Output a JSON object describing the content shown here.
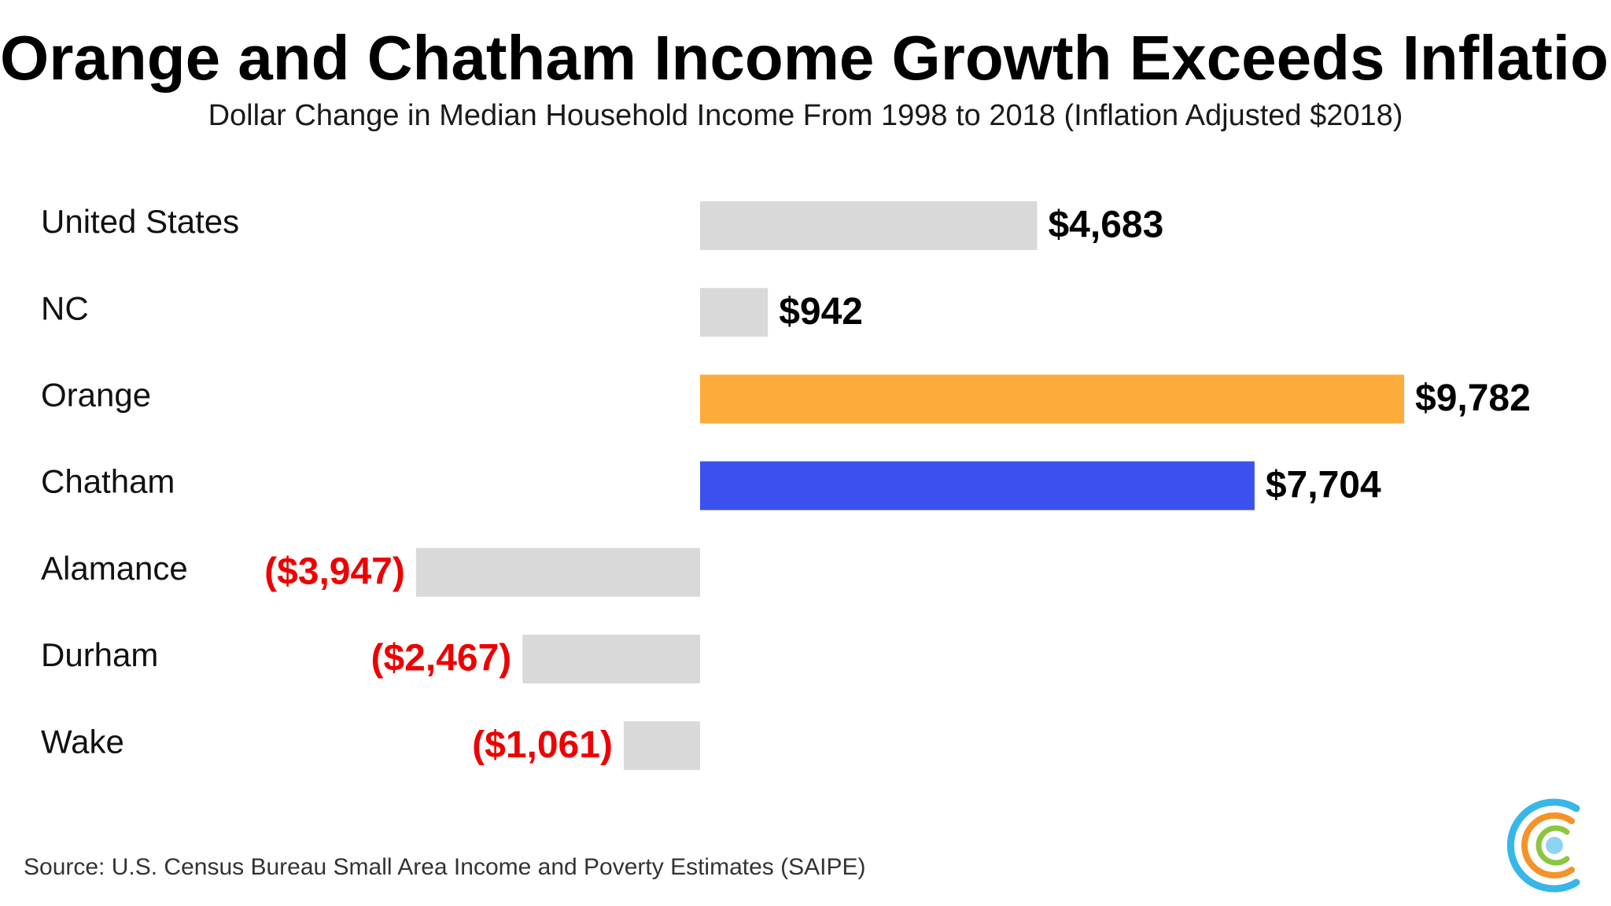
{
  "title": "Orange and Chatham Income Growth Exceeds Inflation",
  "subtitle": "Dollar Change in Median Household Income From 1998 to 2018 (Inflation Adjusted $2018)",
  "source": "Source: U.S. Census Bureau Small Area Income and Poverty Estimates (SAIPE)",
  "colors": {
    "default_bar": "#d9d9d9",
    "orange_bar": "#fdab3b",
    "chatham_bar": "#3c50ee",
    "positive_label": "#000000",
    "negative_label": "#ee0000"
  },
  "chart_data": {
    "type": "bar",
    "orientation": "horizontal",
    "categories": [
      "United States",
      "NC",
      "Orange",
      "Chatham",
      "Alamance",
      "Durham",
      "Wake"
    ],
    "values": [
      4683,
      942,
      9782,
      7704,
      -3947,
      -2467,
      -1061
    ],
    "value_labels": [
      "$4,683",
      "$942",
      "$9,782",
      "$7,704",
      "($3,947)",
      "($2,467)",
      "($1,061)"
    ],
    "bar_colors": [
      "#d9d9d9",
      "#d9d9d9",
      "#fdab3b",
      "#3c50ee",
      "#d9d9d9",
      "#d9d9d9",
      "#d9d9d9"
    ],
    "label_colors": [
      "#000000",
      "#000000",
      "#000000",
      "#000000",
      "#ee0000",
      "#ee0000",
      "#ee0000"
    ],
    "xlim": [
      -9782,
      9782
    ],
    "grid": false,
    "legend": "none"
  }
}
